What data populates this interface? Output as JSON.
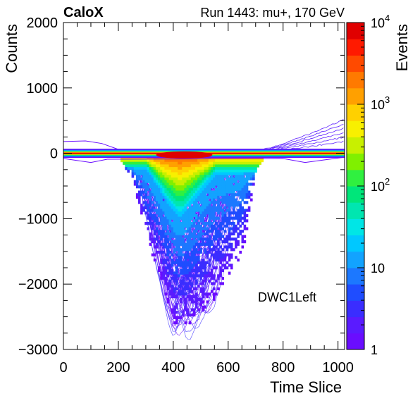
{
  "header": {
    "experiment": "CaloX",
    "run_info": "Run 1443: mu+, 170 GeV"
  },
  "chart_data": {
    "type": "heatmap",
    "xlabel": "Time Slice",
    "ylabel": "Counts",
    "zlabel": "Events",
    "annotation": "DWC1Left",
    "xlim": [
      0,
      1024
    ],
    "ylim": [
      -3000,
      2000
    ],
    "zlim": [
      1,
      10000
    ],
    "z_scale": "log",
    "colormap": "rainbow (violet → red)",
    "x_ticks": [
      "0",
      "200",
      "400",
      "600",
      "800",
      "1000"
    ],
    "y_ticks": [
      "−3000",
      "−2000",
      "−1000",
      "0",
      "1000",
      "2000"
    ],
    "z_ticks": [
      "1",
      "10",
      "10",
      "10",
      "10"
    ],
    "z_tick_exponents": [
      "",
      "",
      "2",
      "3",
      "4"
    ],
    "baseline": {
      "y": 0,
      "x_range": [
        0,
        1024
      ],
      "peak_events": 10000
    },
    "signal_envelope": [
      {
        "x": 200,
        "y_min": -50
      },
      {
        "x": 250,
        "y_min": -400
      },
      {
        "x": 300,
        "y_min": -1300
      },
      {
        "x": 350,
        "y_min": -1900
      },
      {
        "x": 400,
        "y_min": -2600
      },
      {
        "x": 450,
        "y_min": -2650
      },
      {
        "x": 500,
        "y_min": -2400
      },
      {
        "x": 550,
        "y_min": -2200
      },
      {
        "x": 600,
        "y_min": -1900
      },
      {
        "x": 650,
        "y_min": -1500
      },
      {
        "x": 700,
        "y_min": -200
      },
      {
        "x": 730,
        "y_min": -50
      }
    ],
    "high_density_core": [
      {
        "x": 300,
        "y_min": -200
      },
      {
        "x": 380,
        "y_min": -700
      },
      {
        "x": 420,
        "y_min": -900
      },
      {
        "x": 480,
        "y_min": -600
      },
      {
        "x": 550,
        "y_min": -250
      }
    ],
    "upper_drift": [
      {
        "x": 700,
        "y": 20
      },
      {
        "x": 800,
        "y": 150
      },
      {
        "x": 900,
        "y": 300
      },
      {
        "x": 1024,
        "y": 520
      }
    ]
  }
}
